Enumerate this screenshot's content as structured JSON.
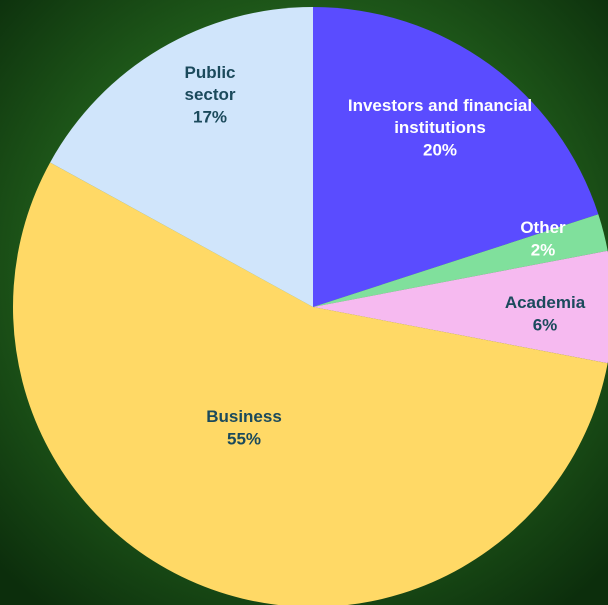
{
  "chart_data": {
    "type": "pie",
    "categories": [
      "Investors and financial institutions",
      "Other",
      "Academia",
      "Business",
      "Public sector"
    ],
    "values": [
      20,
      2,
      6,
      55,
      17
    ],
    "value_labels": [
      "20%",
      "2%",
      "6%",
      "55%",
      "17%"
    ],
    "colors": [
      "#5a4cff",
      "#80e09c",
      "#f6baf0",
      "#ffd966",
      "#d0e5fb"
    ]
  }
}
